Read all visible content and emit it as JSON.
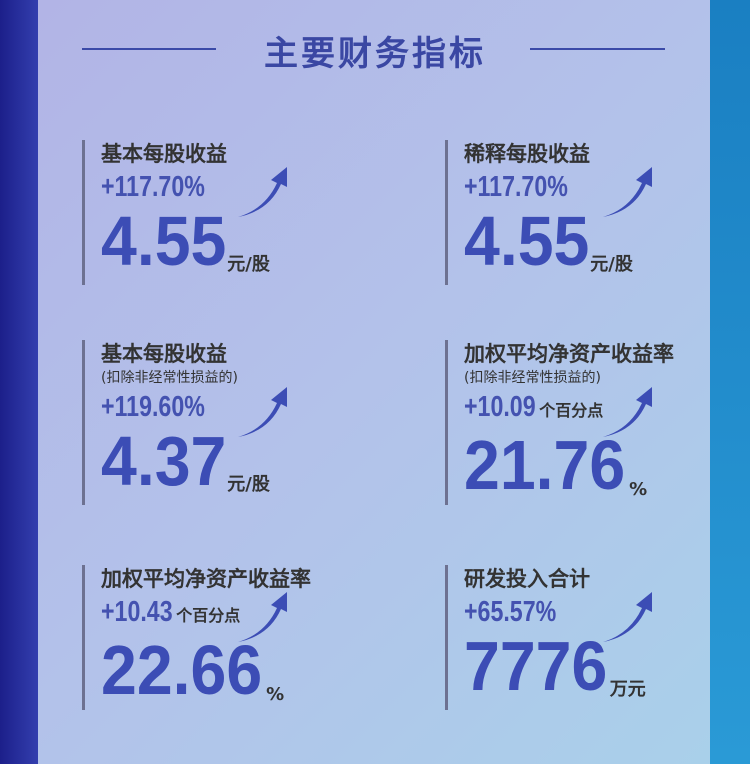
{
  "title": "主要财务指标",
  "colors": {
    "accent": "#3c4db5",
    "title": "#3a47a3",
    "panel": "#b3c2ea"
  },
  "cards": [
    {
      "label": "基本每股收益",
      "note": "",
      "change": "+117.70%",
      "change_unit": "",
      "value": "4.55",
      "unit": "元/股",
      "icon": "arrow-up-right-icon"
    },
    {
      "label": "稀释每股收益",
      "note": "",
      "change": "+117.70%",
      "change_unit": "",
      "value": "4.55",
      "unit": "元/股",
      "icon": "arrow-up-right-icon"
    },
    {
      "label": "基本每股收益",
      "note": "(扣除非经常性损益的)",
      "change": "+119.60%",
      "change_unit": "",
      "value": "4.37",
      "unit": "元/股",
      "icon": "arrow-up-right-icon"
    },
    {
      "label": "加权平均净资产收益率",
      "note": "(扣除非经常性损益的)",
      "change": "+10.09",
      "change_unit": "个百分点",
      "value": "21.76",
      "unit": "%",
      "icon": "arrow-up-right-icon"
    },
    {
      "label": "加权平均净资产收益率",
      "note": "",
      "change": "+10.43",
      "change_unit": "个百分点",
      "value": "22.66",
      "unit": "%",
      "icon": "arrow-up-right-icon"
    },
    {
      "label": "研发投入合计",
      "note": "",
      "change": "+65.57%",
      "change_unit": "",
      "value": "7776",
      "unit": "万元",
      "icon": "arrow-up-right-icon"
    }
  ]
}
